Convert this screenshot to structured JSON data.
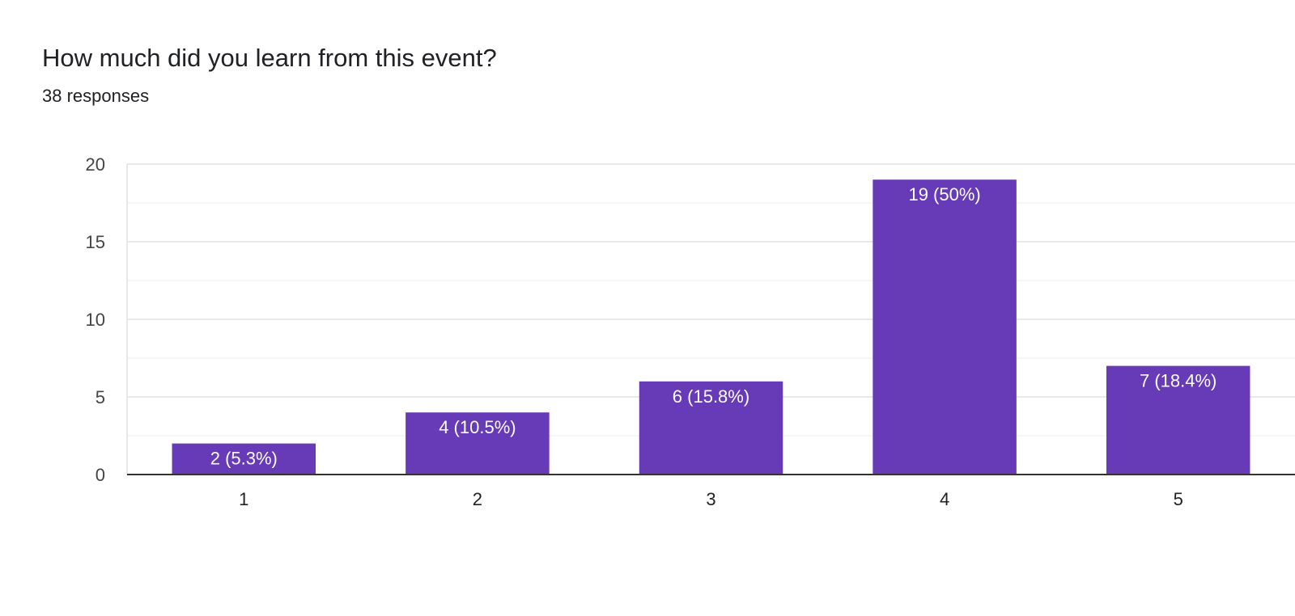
{
  "header": {
    "question": "How much did you learn from this event?",
    "responses": "38 responses"
  },
  "colors": {
    "bar": "#673ab7",
    "grid_major": "#e8e8e8",
    "grid_minor": "#f3f3f3",
    "baseline": "#333333"
  },
  "chart_data": {
    "type": "bar",
    "title": "How much did you learn from this event?",
    "subtitle": "38 responses",
    "categories": [
      "1",
      "2",
      "3",
      "4",
      "5"
    ],
    "values": [
      2,
      4,
      6,
      19,
      7
    ],
    "data_labels": [
      "2 (5.3%)",
      "4 (10.5%)",
      "6 (15.8%)",
      "19 (50%)",
      "7 (18.4%)"
    ],
    "y_ticks": [
      0,
      5,
      10,
      15,
      20
    ],
    "ylim": [
      0,
      20
    ],
    "xlabel": "",
    "ylabel": "",
    "grid": true,
    "legend": "none"
  }
}
